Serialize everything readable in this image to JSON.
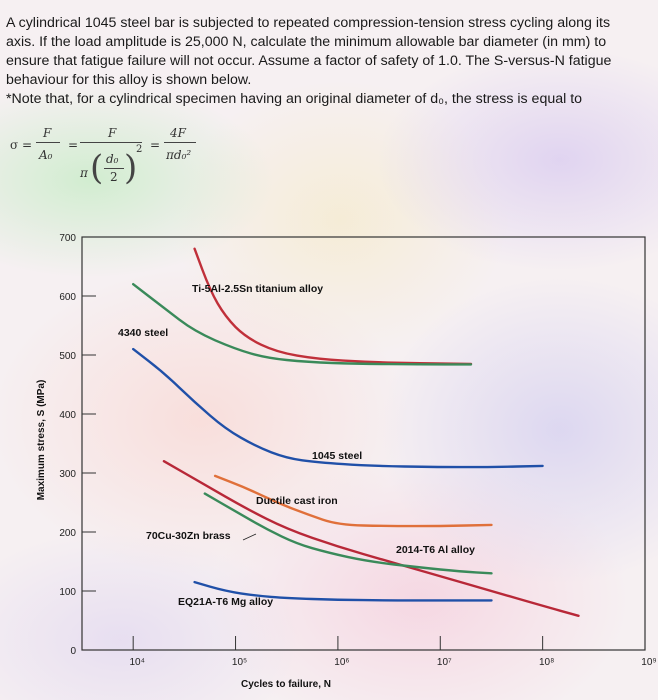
{
  "problem": {
    "line1": "A cylindrical 1045 steel bar is subjected to repeated compression-tension stress cycling along its",
    "line2": "axis. If the load amplitude is 25,000 N, calculate the minimum allowable bar diameter (in mm) to",
    "line3": "ensure that fatigue failure will not occur. Assume a factor of safety of 1.0. The S-versus-N fatigue",
    "line4": "behaviour for this alloy is shown below.",
    "note": "*Note that, for a cylindrical specimen having an original diameter of d₀, the stress is equal to"
  },
  "formula": {
    "sigma": "σ =",
    "F1": "F",
    "A0": "A₀",
    "eq1": "=",
    "F2": "F",
    "pi": "π",
    "d0": "d₀",
    "two": "2",
    "sq": "2",
    "eq2": "=",
    "num": "4F",
    "den": "πd₀²"
  },
  "chart_data": {
    "type": "line",
    "xscale": "log",
    "ylabel": "Maximum stress, S (MPa)",
    "xlabel": "Cycles to failure, N",
    "y_ticks": [
      "700",
      "600",
      "500",
      "400",
      "300",
      "200",
      "100",
      "0"
    ],
    "x_ticks": [
      "10⁴",
      "10⁵",
      "10⁶",
      "10⁷",
      "10⁸",
      "10⁹"
    ],
    "ylim": [
      0,
      700
    ],
    "xlim_exp": [
      3.5,
      9.0
    ],
    "series": [
      {
        "name": "Ti-5Al-2.5Sn titanium alloy",
        "color": "#c0303a",
        "points": [
          [
            4.6,
            680
          ],
          [
            4.75,
            610
          ],
          [
            4.9,
            565
          ],
          [
            5.1,
            530
          ],
          [
            5.4,
            505
          ],
          [
            5.8,
            493
          ],
          [
            6.3,
            488
          ],
          [
            6.8,
            486
          ],
          [
            7.3,
            485
          ]
        ]
      },
      {
        "name": "4340 steel",
        "color": "#3a8a5a",
        "points": [
          [
            4.0,
            620
          ],
          [
            4.3,
            580
          ],
          [
            4.6,
            540
          ],
          [
            5.0,
            510
          ],
          [
            5.3,
            495
          ],
          [
            5.7,
            488
          ],
          [
            6.2,
            485
          ],
          [
            6.8,
            484
          ],
          [
            7.3,
            484
          ]
        ]
      },
      {
        "name": "1045 steel",
        "color": "#2050a8",
        "points": [
          [
            4.0,
            510
          ],
          [
            4.3,
            470
          ],
          [
            4.6,
            420
          ],
          [
            4.9,
            375
          ],
          [
            5.2,
            345
          ],
          [
            5.5,
            325
          ],
          [
            5.8,
            318
          ],
          [
            6.3,
            312
          ],
          [
            7.0,
            310
          ],
          [
            7.5,
            310
          ],
          [
            8.0,
            312
          ]
        ]
      },
      {
        "name": "Ductile cast iron",
        "color": "#e0703a",
        "points": [
          [
            4.8,
            295
          ],
          [
            5.1,
            275
          ],
          [
            5.4,
            250
          ],
          [
            5.7,
            230
          ],
          [
            6.0,
            212
          ],
          [
            6.5,
            210
          ],
          [
            7.0,
            210
          ],
          [
            7.5,
            212
          ]
        ]
      },
      {
        "name": "2014-T6 Al alloy",
        "color": "#b82838",
        "points": [
          [
            4.3,
            320
          ],
          [
            4.7,
            280
          ],
          [
            5.1,
            240
          ],
          [
            5.5,
            205
          ],
          [
            6.0,
            175
          ],
          [
            6.5,
            150
          ],
          [
            7.0,
            125
          ],
          [
            7.5,
            100
          ],
          [
            8.0,
            75
          ],
          [
            8.35,
            58
          ]
        ]
      },
      {
        "name": "70Cu-30Zn brass",
        "color": "#3a8a5a",
        "points": [
          [
            4.7,
            265
          ],
          [
            5.0,
            235
          ],
          [
            5.3,
            205
          ],
          [
            5.6,
            180
          ],
          [
            5.9,
            165
          ],
          [
            6.3,
            150
          ],
          [
            6.8,
            140
          ],
          [
            7.2,
            133
          ],
          [
            7.5,
            130
          ]
        ]
      },
      {
        "name": "EQ21A-T6 Mg alloy",
        "color": "#2050a8",
        "points": [
          [
            4.6,
            115
          ],
          [
            4.9,
            100
          ],
          [
            5.2,
            92
          ],
          [
            5.5,
            88
          ],
          [
            6.0,
            85
          ],
          [
            6.5,
            84
          ],
          [
            7.0,
            84
          ],
          [
            7.5,
            84
          ]
        ]
      }
    ],
    "curve_labels": [
      {
        "text": "Ti-5Al-2.5Sn titanium alloy"
      },
      {
        "text": "4340 steel"
      },
      {
        "text": "1045 steel"
      },
      {
        "text": "Ductile cast iron"
      },
      {
        "text": "70Cu-30Zn brass"
      },
      {
        "text": "2014-T6 Al alloy"
      },
      {
        "text": "EQ21A-T6 Mg alloy"
      }
    ]
  }
}
